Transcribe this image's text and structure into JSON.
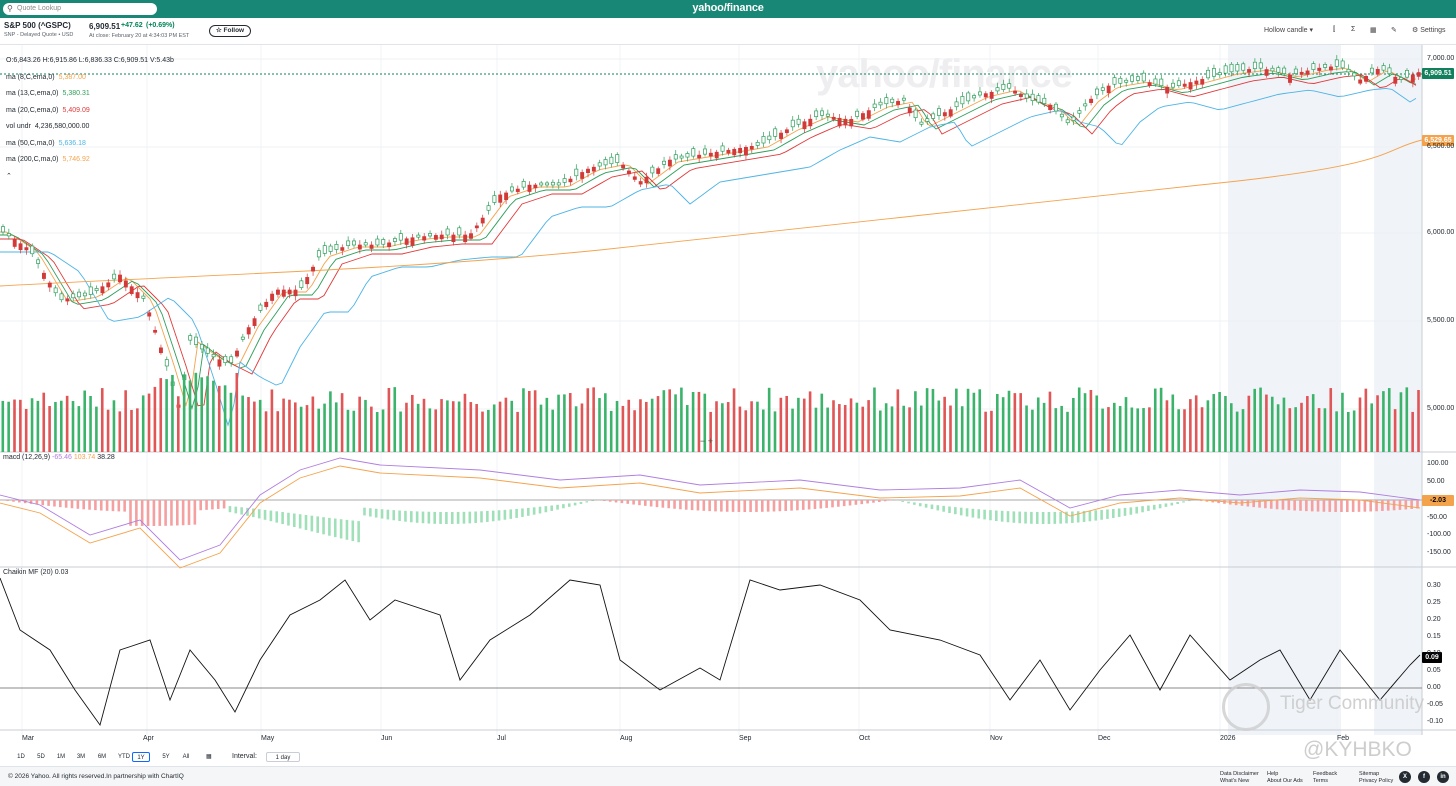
{
  "topbar": {
    "search_placeholder": "Quote Lookup",
    "logo": "yahoo/finance"
  },
  "quote": {
    "name": "S&P 500 (^GSPC)",
    "sub": "SNP - Delayed Quote • USD",
    "price": "6,909.51",
    "change": "+47.62",
    "change_pct": "(+0.69%)",
    "time": "At close: February 20 at 4:34:03 PM EST",
    "follow_label": "Follow"
  },
  "toolbar": {
    "candle_type": "Hollow candle",
    "settings_label": "Settings"
  },
  "legend": {
    "ohlc": "O:6,843.26  H:6,915.86  L:6,836.33  C:6,909.51  V:5.43b",
    "items": [
      {
        "label": "ma (8,C,ema,0)",
        "value": "5,387.00",
        "color": "#f4a34d"
      },
      {
        "label": "ma (13,C,ema,0)",
        "value": "5,380.31",
        "color": "#2e9e5a"
      },
      {
        "label": "ma (20,C,ema,0)",
        "value": "5,409.09",
        "color": "#e03a3a"
      },
      {
        "label": "vol undr",
        "value": "4,236,580,000.00",
        "color": "#232a31"
      },
      {
        "label": "ma (50,C,ma,0)",
        "value": "5,636.18",
        "color": "#4db4e6"
      },
      {
        "label": "ma (200,C,ma,0)",
        "value": "5,746.92",
        "color": "#f4a34d"
      }
    ]
  },
  "macd": {
    "label": "macd (12,26,9)",
    "v1": "-65.46",
    "v2": "103.74",
    "v3": "38.28",
    "badge": "-2.03"
  },
  "chaikin": {
    "label": "Chaikin MF (20)",
    "value": "0.03",
    "badge": "0.09"
  },
  "price_axis": {
    "ticks": [
      "7,000.00",
      "6,500.00",
      "6,000.00",
      "5,500.00",
      "5,000.00"
    ],
    "badge_last": "6,909.51",
    "badge_ma": "6,529.65"
  },
  "macd_axis": {
    "ticks": [
      "100.00",
      "50.00",
      "-50.00",
      "-100.00",
      "-150.00"
    ]
  },
  "cmf_axis": {
    "ticks": [
      "0.30",
      "0.25",
      "0.20",
      "0.15",
      "0.10",
      "0.05",
      "0.00",
      "-0.05",
      "-0.10"
    ]
  },
  "time_axis": {
    "labels": [
      "Mar",
      "Apr",
      "May",
      "Jun",
      "Jul",
      "Aug",
      "Sep",
      "Oct",
      "Nov",
      "Dec",
      "2026",
      "Feb"
    ]
  },
  "ranges": [
    "1D",
    "5D",
    "1M",
    "3M",
    "6M",
    "YTD",
    "1Y",
    "5Y",
    "All"
  ],
  "interval_label": "Interval:",
  "interval_value": "1 day",
  "footer": {
    "copyright": "© 2026 Yahoo. All rights reserved.In partnership with ChartIQ",
    "links": [
      "Data Disclaimer",
      "What's New",
      "Help",
      "About Our Ads",
      "Feedback",
      "Terms",
      "Sitemap",
      "Privacy Policy"
    ]
  },
  "watermarks": {
    "tiger": "Tiger Community",
    "user": "@KYHBKO"
  }
}
